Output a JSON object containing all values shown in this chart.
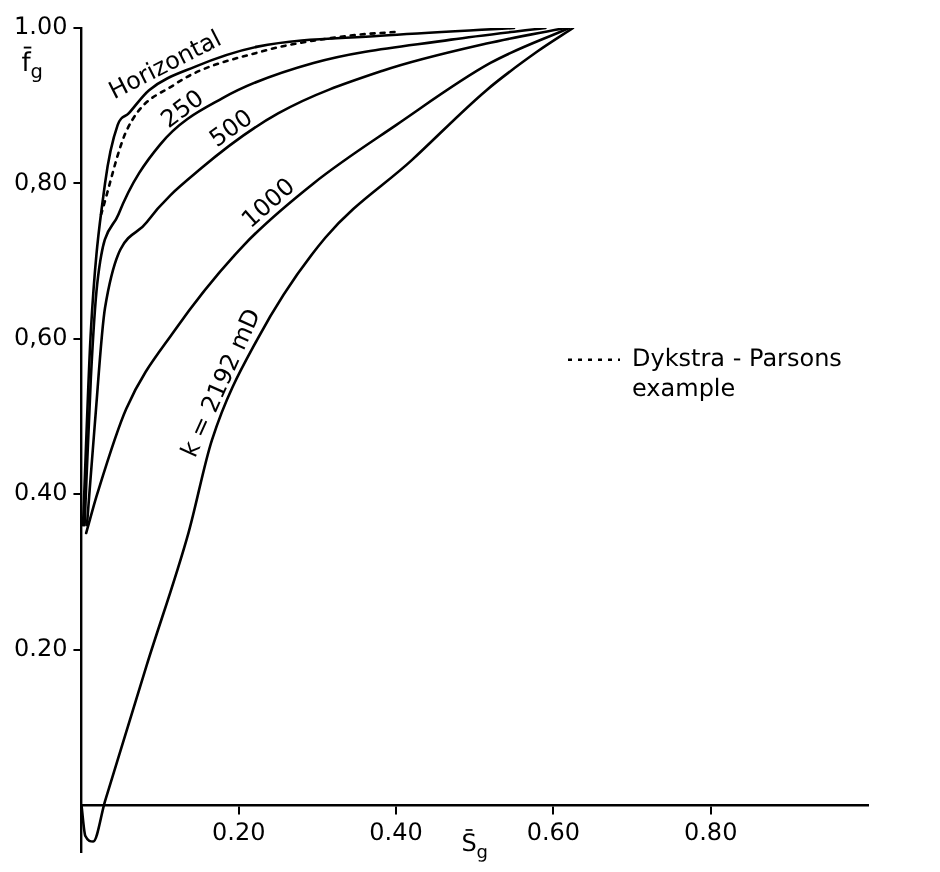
{
  "chart_data": {
    "type": "line",
    "xlabel": "S̄$_{g}$",
    "ylabel": "f̄$_{g}$",
    "xlim": [
      0,
      1.0
    ],
    "ylim": [
      -0.06,
      1.0
    ],
    "xticks": [
      {
        "value": 0.2,
        "label": "0.20"
      },
      {
        "value": 0.4,
        "label": "0.40"
      },
      {
        "value": 0.6,
        "label": "0.60"
      },
      {
        "value": 0.8,
        "label": "0.80"
      }
    ],
    "yticks": [
      {
        "value": 0.2,
        "label": "0.20"
      },
      {
        "value": 0.4,
        "label": "0.40"
      },
      {
        "value": 0.6,
        "label": "0,60"
      },
      {
        "value": 0.8,
        "label": "0,80"
      },
      {
        "value": 1.0,
        "label": "1.00"
      }
    ],
    "grid": false,
    "legend": "right",
    "marker": "none",
    "series": [
      {
        "name": "Horizontal",
        "color": "#000000",
        "line_style": "solid",
        "x": [
          0.002,
          0.012,
          0.03,
          0.046,
          0.06,
          0.086,
          0.144,
          0.224,
          0.38,
          0.55
        ],
        "values": [
          0.36,
          0.61,
          0.8,
          0.875,
          0.89,
          0.92,
          0.95,
          0.976,
          0.99,
          1.0
        ]
      },
      {
        "name": "Dykstra - Parsons example",
        "color": "#000000",
        "line_style": "dotted",
        "x": [
          0.025,
          0.057,
          0.118,
          0.23,
          0.34,
          0.4
        ],
        "values": [
          0.76,
          0.867,
          0.927,
          0.97,
          0.99,
          0.995
        ]
      },
      {
        "name": "250",
        "color": "#000000",
        "line_style": "solid",
        "x": [
          0.004,
          0.012,
          0.02,
          0.047,
          0.1,
          0.18,
          0.295,
          0.47,
          0.59
        ],
        "values": [
          0.36,
          0.55,
          0.67,
          0.76,
          0.85,
          0.91,
          0.955,
          0.985,
          1.0
        ]
      },
      {
        "name": "500",
        "color": "#000000",
        "line_style": "solid",
        "x": [
          0.007,
          0.017,
          0.03,
          0.083,
          0.153,
          0.25,
          0.383,
          0.515,
          0.615
        ],
        "values": [
          0.36,
          0.49,
          0.64,
          0.75,
          0.82,
          0.89,
          0.945,
          0.98,
          1.0
        ]
      },
      {
        "name": "1000",
        "color": "#000000",
        "line_style": "solid",
        "x": [
          0.006,
          0.02,
          0.057,
          0.118,
          0.206,
          0.295,
          0.4,
          0.52,
          0.62
        ],
        "values": [
          0.35,
          0.4,
          0.51,
          0.61,
          0.72,
          0.8,
          0.875,
          0.955,
          1.0
        ]
      },
      {
        "name": "k = 2192 mD",
        "color": "#000000",
        "line_style": "solid",
        "x": [
          0,
          0.005,
          0.015,
          0.03,
          0.083,
          0.136,
          0.166,
          0.224,
          0.31,
          0.42,
          0.515,
          0.58,
          0.625
        ],
        "values": [
          0,
          -0.04,
          -0.047,
          0.005,
          0.18,
          0.35,
          0.47,
          0.6,
          0.73,
          0.83,
          0.92,
          0.97,
          1.0
        ]
      }
    ]
  }
}
